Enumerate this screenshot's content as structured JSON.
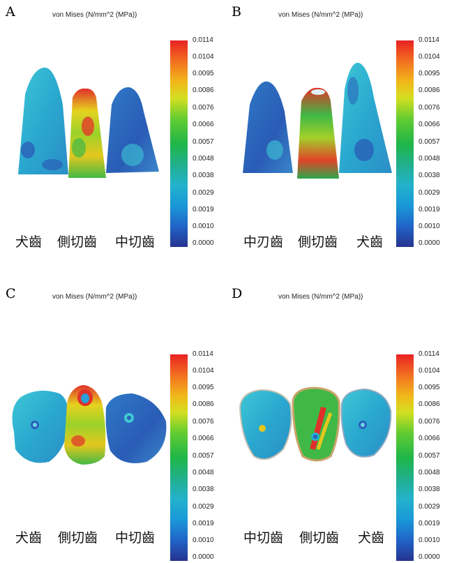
{
  "plot_title": "von Mises (N/mm^2 (MPa))",
  "scale_ticks": [
    "0.0114",
    "0.0104",
    "0.0095",
    "0.0086",
    "0.0076",
    "0.0066",
    "0.0057",
    "0.0048",
    "0.0038",
    "0.0029",
    "0.0019",
    "0.0010",
    "0.0000"
  ],
  "colors": {
    "high": "#e82222",
    "mid_high": "#f1b81a",
    "mid": "#1fb648",
    "mid_low": "#22b2cc",
    "low": "#27338f"
  },
  "panels": [
    {
      "letter": "A",
      "view": "labial",
      "labels": [
        "犬齒",
        "側切齒",
        "中切齒"
      ]
    },
    {
      "letter": "B",
      "view": "lingual",
      "labels": [
        "中刃齒",
        "側切齒",
        "犬齒"
      ]
    },
    {
      "letter": "C",
      "view": "labial-top",
      "labels": [
        "犬齒",
        "側切齒",
        "中切齒"
      ]
    },
    {
      "letter": "D",
      "view": "lingual-top",
      "labels": [
        "中切齒",
        "側切齒",
        "犬齒"
      ]
    }
  ]
}
